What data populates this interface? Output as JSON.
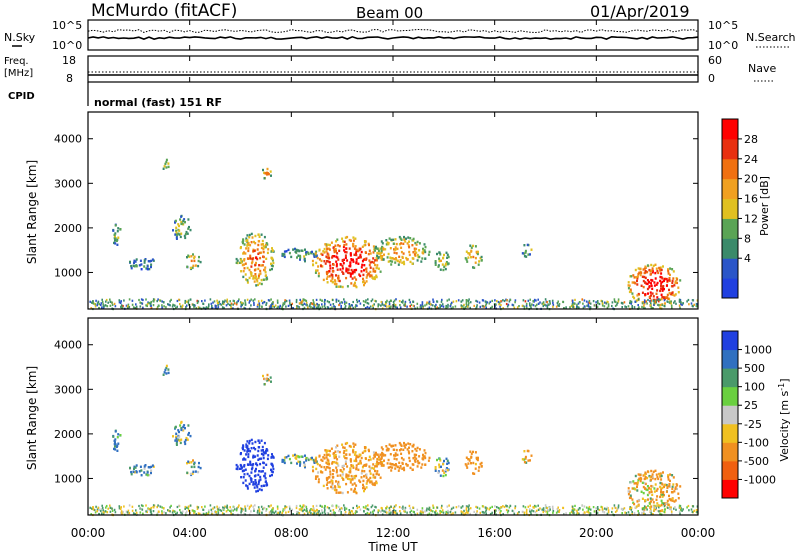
{
  "header": {
    "site": "McMurdo (fitACF)",
    "beam": "Beam 00",
    "date": "01/Apr/2019"
  },
  "top_panel": {
    "left_label": "N.Sky",
    "right_label": "N.Search",
    "left_ticks": [
      "10^5",
      "10^0"
    ],
    "right_ticks": [
      "10^5",
      "10^0"
    ]
  },
  "freq_panel": {
    "left_label_1": "Freq.",
    "left_label_2": "[MHz]",
    "cpid_label": "CPID",
    "right_label": "Nave",
    "left_ticks": [
      "18",
      "8"
    ],
    "right_ticks": [
      "60",
      "0"
    ],
    "mode_text": "normal (fast) 151 RF"
  },
  "power_panel": {
    "ylabel": "Slant Range [km]",
    "yticks": [
      "4000",
      "3000",
      "2000",
      "1000"
    ],
    "colorbar_label": "Power [dB]",
    "colorbar_ticks": [
      "28",
      "24",
      "20",
      "16",
      "12",
      "8",
      "4"
    ],
    "colors": [
      "#2040e0",
      "#2a55c8",
      "#3a8a6a",
      "#5aa455",
      "#e0c020",
      "#f0a020",
      "#f07010",
      "#e83010",
      "#ff0000"
    ]
  },
  "velocity_panel": {
    "ylabel": "Slant Range [km]",
    "yticks": [
      "4000",
      "3000",
      "2000",
      "1000"
    ],
    "colorbar_label": "Velocity [m s^-1]",
    "colorbar_ticks": [
      "1000",
      "500",
      "100",
      "25",
      "-25",
      "-100",
      "-500",
      "-1000"
    ],
    "colors": [
      "#2040e0",
      "#3070c0",
      "#4a9a6a",
      "#6ad040",
      "#c8c8c8",
      "#f0c020",
      "#f09020",
      "#f06010",
      "#ff0000"
    ]
  },
  "xaxis": {
    "label": "Time UT",
    "ticks": [
      "00:00",
      "04:00",
      "08:00",
      "12:00",
      "16:00",
      "20:00",
      "00:00"
    ]
  },
  "chart_data": {
    "type": "heatmap",
    "title": "McMurdo (fitACF) Beam 00 01/Apr/2019",
    "xlabel": "Time UT",
    "ylabel": "Slant Range [km]",
    "xlim": [
      0,
      24
    ],
    "ylim": [
      180,
      4600
    ],
    "x_tick_hours": [
      0,
      4,
      8,
      12,
      16,
      20,
      24
    ],
    "y_tick_values": [
      1000,
      2000,
      3000,
      4000
    ],
    "power_range_db": [
      0,
      30
    ],
    "velocity_range": [
      -1000,
      1000
    ],
    "echo_regions": [
      {
        "t0": 0.9,
        "t1": 1.3,
        "r0": 1600,
        "r1": 2100,
        "power": 10,
        "velocity": 200
      },
      {
        "t0": 1.5,
        "t1": 2.7,
        "r0": 1050,
        "r1": 1350,
        "power": 8,
        "velocity": 150
      },
      {
        "t0": 3.3,
        "t1": 4.0,
        "r0": 1700,
        "r1": 2300,
        "power": 12,
        "velocity": 100
      },
      {
        "t0": 3.8,
        "t1": 4.4,
        "r0": 1050,
        "r1": 1450,
        "power": 16,
        "velocity": 80
      },
      {
        "t0": 2.9,
        "t1": 3.2,
        "r0": 3250,
        "r1": 3550,
        "power": 12,
        "velocity": 50
      },
      {
        "t0": 5.8,
        "t1": 7.3,
        "r0": 700,
        "r1": 1900,
        "power": 20,
        "velocity": 700
      },
      {
        "t0": 6.8,
        "t1": 7.2,
        "r0": 3100,
        "r1": 3350,
        "power": 18,
        "velocity": -100
      },
      {
        "t0": 7.6,
        "t1": 9.0,
        "r0": 1250,
        "r1": 1550,
        "power": 10,
        "velocity": 100
      },
      {
        "t0": 8.8,
        "t1": 11.6,
        "r0": 650,
        "r1": 1800,
        "power": 26,
        "velocity": -200
      },
      {
        "t0": 11.2,
        "t1": 13.4,
        "r0": 1150,
        "r1": 1800,
        "power": 18,
        "velocity": -300
      },
      {
        "t0": 13.6,
        "t1": 14.2,
        "r0": 1000,
        "r1": 1500,
        "power": 14,
        "velocity": 60
      },
      {
        "t0": 14.8,
        "t1": 15.5,
        "r0": 1100,
        "r1": 1650,
        "power": 16,
        "velocity": -250
      },
      {
        "t0": 17.0,
        "t1": 17.5,
        "r0": 1350,
        "r1": 1650,
        "power": 12,
        "velocity": -150
      },
      {
        "t0": 21.2,
        "t1": 23.3,
        "r0": 250,
        "r1": 1200,
        "power": 26,
        "velocity": -150
      }
    ],
    "near_range_clutter_km": [
      180,
      400
    ]
  }
}
